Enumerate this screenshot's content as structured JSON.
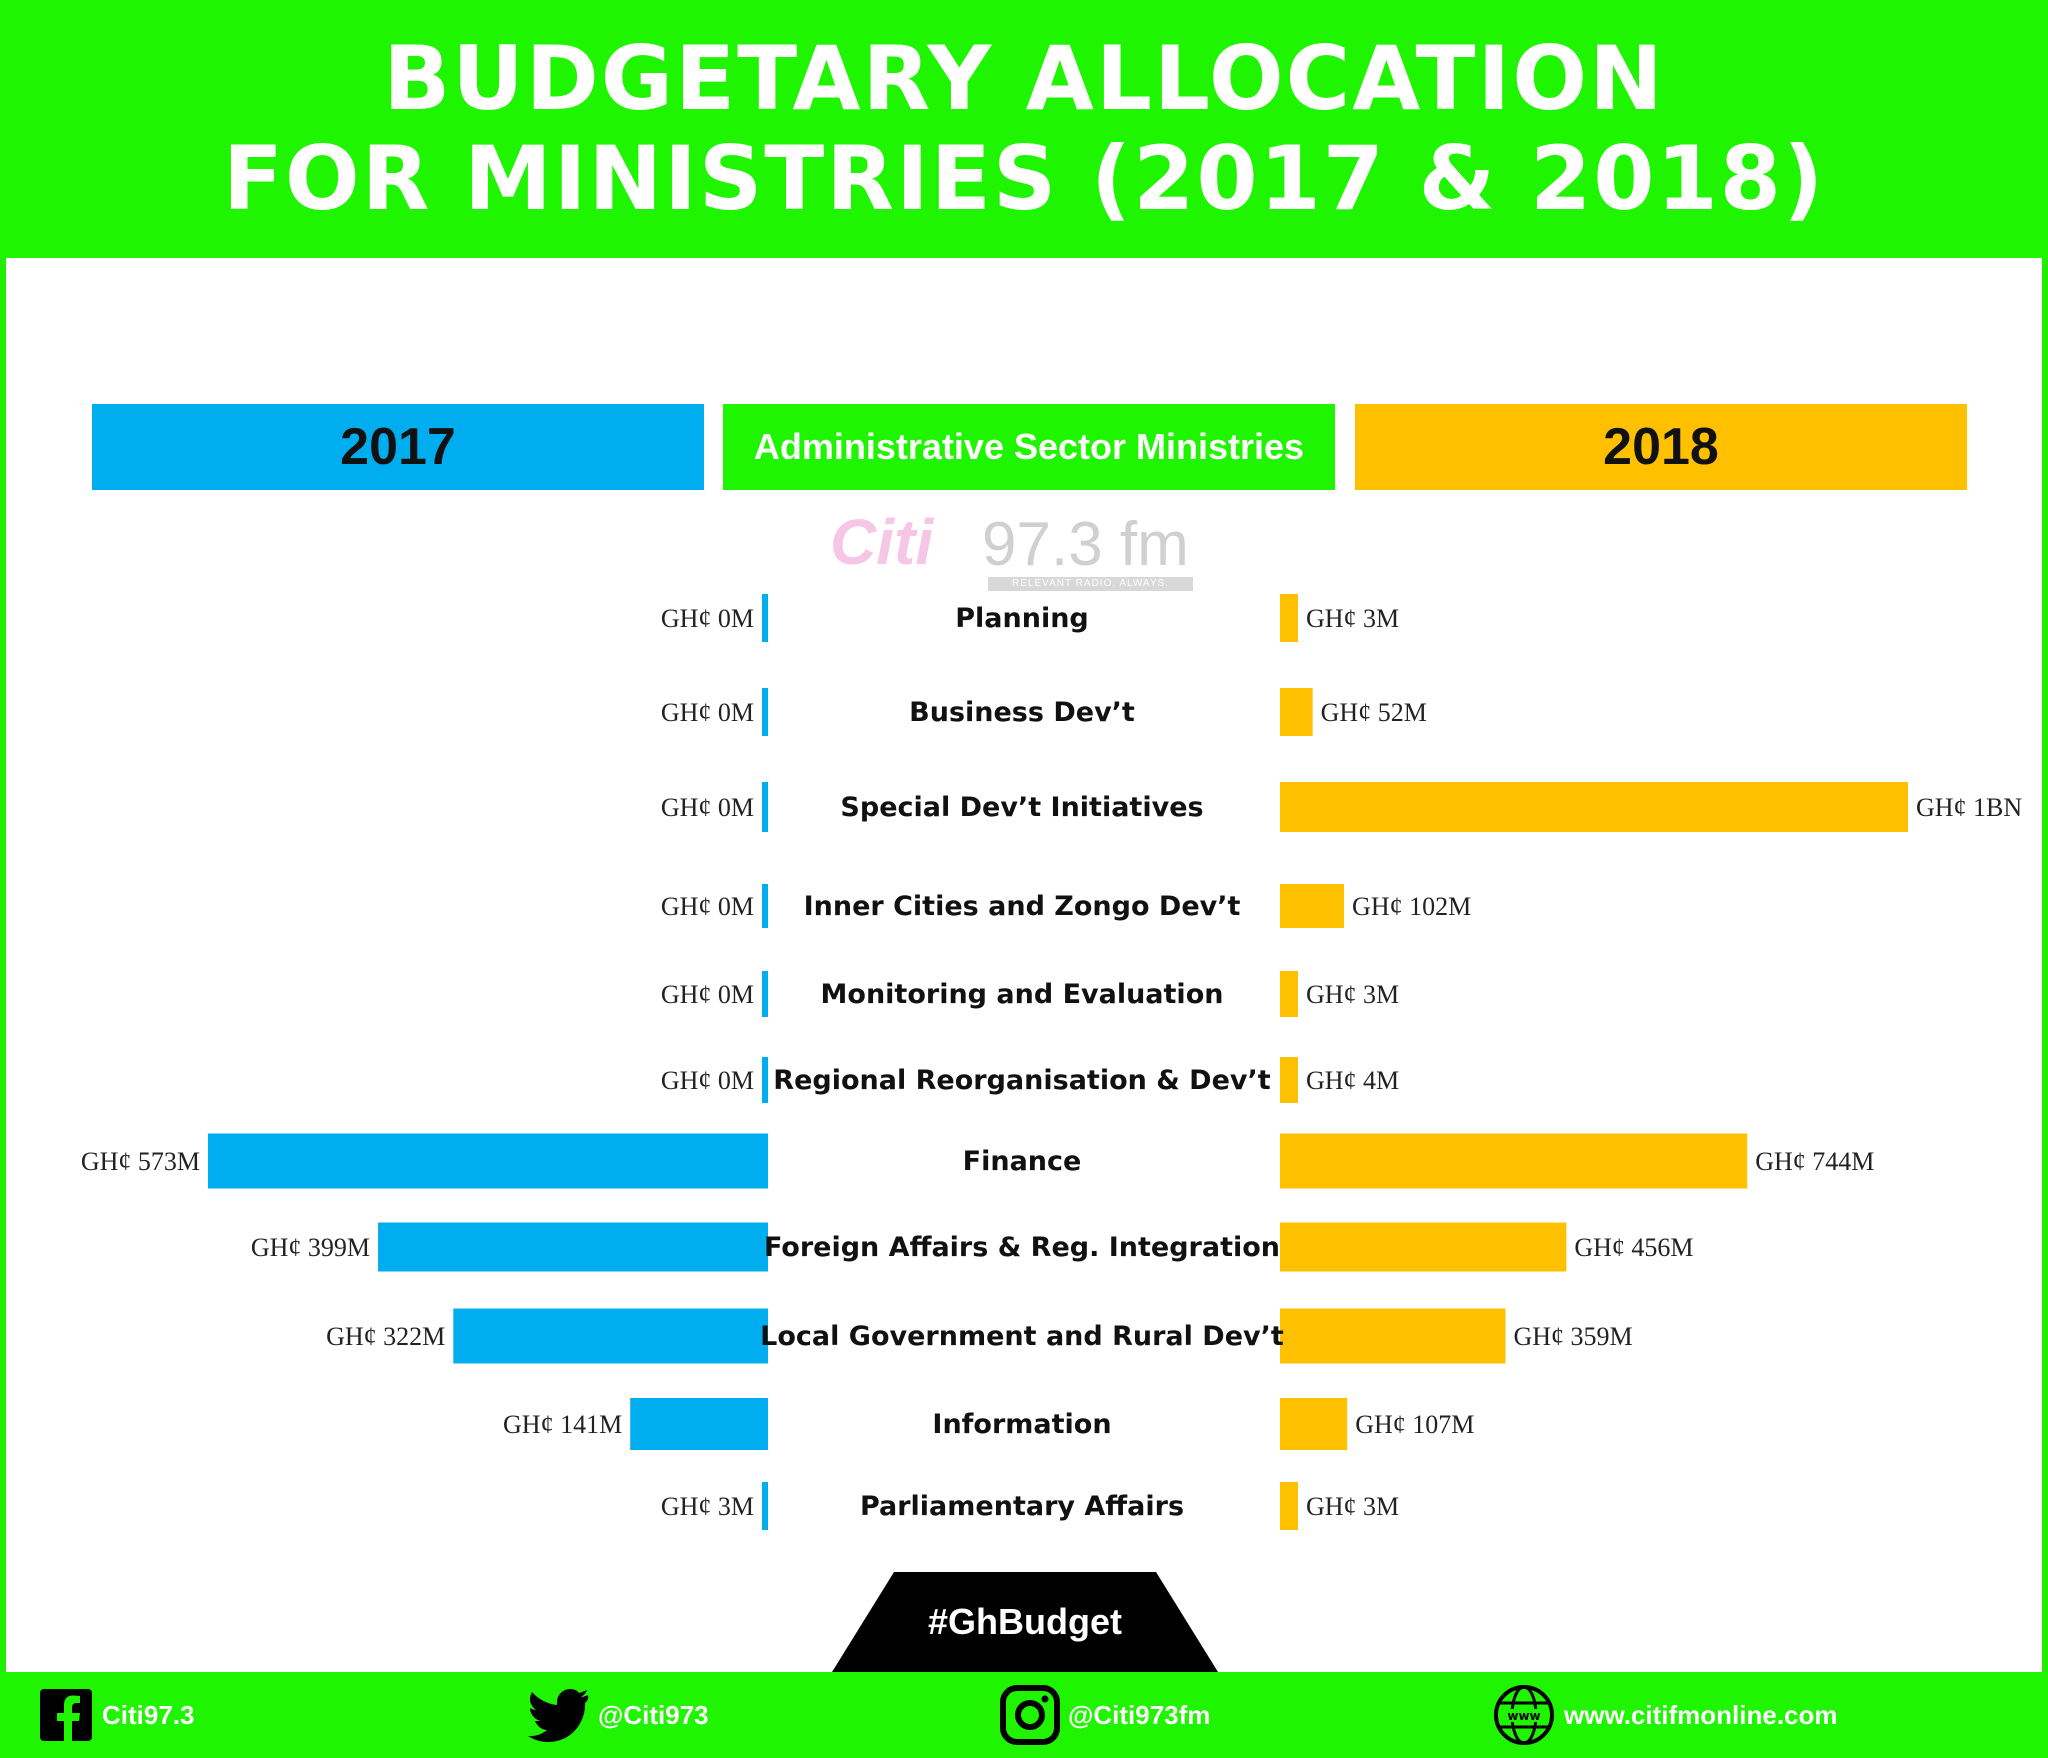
{
  "header": {
    "title_line1": "BUDGETARY ALLOCATION",
    "title_line2": "FOR MINISTRIES (2017 & 2018)"
  },
  "columns": {
    "left": "2017",
    "center": "Administrative Sector Ministries",
    "right": "2018"
  },
  "watermark": {
    "brand": "Citi",
    "freq": "97.3 fm",
    "tagline": "RELEVANT RADIO. ALWAYS."
  },
  "colors": {
    "series_2017": "#00aeef",
    "series_2018": "#ffc000",
    "brand_green": "#1ff500"
  },
  "chart_data": {
    "type": "bar",
    "title": "BUDGETARY ALLOCATION FOR MINISTRIES (2017 & 2018)",
    "subtitle": "Administrative Sector Ministries",
    "unit": "GH¢ millions",
    "categories": [
      "Planning",
      "Business Dev’t",
      "Special Dev’t Initiatives",
      "Inner Cities and Zongo Dev’t",
      "Monitoring and Evaluation",
      "Regional Reorganisation & Dev’t",
      "Finance",
      "Foreign Affairs & Reg. Integration",
      "Local Government and Rural Dev’t",
      "Information",
      "Parliamentary Affairs"
    ],
    "series": [
      {
        "name": "2017",
        "values": [
          0,
          0,
          0,
          0,
          0,
          0,
          573,
          399,
          322,
          141,
          3
        ],
        "labels": [
          "GH¢ 0M",
          "GH¢ 0M",
          "GH¢ 0M",
          "GH¢ 0M",
          "GH¢ 0M",
          "GH¢ 0M",
          "GH¢ 573M",
          "GH¢ 399M",
          "GH¢ 322M",
          "GH¢ 141M",
          "GH¢ 3M"
        ]
      },
      {
        "name": "2018",
        "values": [
          3,
          52,
          1000,
          102,
          3,
          4,
          744,
          456,
          359,
          107,
          3
        ],
        "labels": [
          "GH¢ 3M",
          "GH¢ 52M",
          "GH¢ 1BN",
          "GH¢ 102M",
          "GH¢ 3M",
          "GH¢ 4M",
          "GH¢ 744M",
          "GH¢ 456M",
          "GH¢ 359M",
          "GH¢ 107M",
          "GH¢ 3M"
        ]
      }
    ]
  },
  "hashtag": "#GhBudget",
  "footer": {
    "facebook": "Citi97.3",
    "twitter": "@Citi973",
    "instagram": "@Citi973fm",
    "website": "www.citifmonline.com",
    "www_glyph": "www"
  }
}
